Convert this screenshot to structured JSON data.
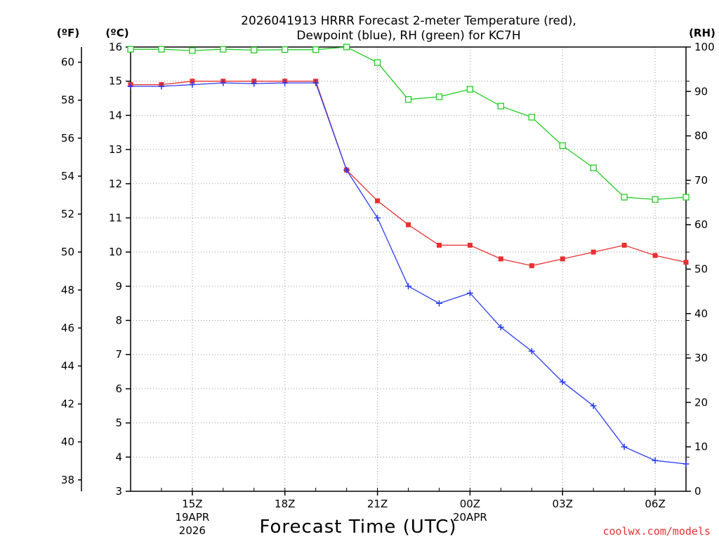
{
  "chart_data": {
    "type": "line",
    "title_line1": "2026041913 HRRR Forecast 2-meter Temperature (red),",
    "title_line2": "Dewpoint (blue), RH (green) for KC7H",
    "left_unit": "(ºF)",
    "middle_unit": "(ºC)",
    "right_unit": "(RH)",
    "xlabel": "Forecast Time (UTC)",
    "credit": "coolwx.com/models",
    "colors": {
      "temperature": "#e83030",
      "dewpoint": "#2a3cf0",
      "rh": "#22cc22",
      "credit": "#e83030",
      "grid": "#999999"
    },
    "x_ticks": [
      {
        "hour": 15,
        "label": "15Z",
        "date": "19APR",
        "year": "2026"
      },
      {
        "hour": 18,
        "label": "18Z"
      },
      {
        "hour": 21,
        "label": "21Z"
      },
      {
        "hour": 24,
        "label": "00Z",
        "date": "20APR"
      },
      {
        "hour": 27,
        "label": "03Z"
      },
      {
        "hour": 30,
        "label": "06Z"
      }
    ],
    "xlim": [
      13,
      31
    ],
    "celsius_axis": {
      "range": [
        3,
        16
      ],
      "ticks": [
        3,
        4,
        5,
        6,
        7,
        8,
        9,
        10,
        11,
        12,
        13,
        14,
        15,
        16
      ]
    },
    "fahrenheit_axis": {
      "ticks": [
        38,
        40,
        42,
        44,
        46,
        48,
        50,
        52,
        54,
        56,
        58,
        60
      ]
    },
    "rh_axis": {
      "range": [
        0,
        100
      ],
      "ticks": [
        0,
        10,
        20,
        30,
        40,
        50,
        60,
        70,
        80,
        90,
        100
      ]
    },
    "series": [
      {
        "name": "Temperature",
        "unit": "C",
        "marker": "filled-square",
        "x": [
          13,
          14,
          15,
          16,
          17,
          18,
          19,
          20,
          21,
          22,
          23,
          24,
          25,
          26,
          27,
          28,
          29,
          30,
          31
        ],
        "values": [
          14.9,
          14.9,
          15.0,
          15.0,
          15.0,
          15.0,
          15.0,
          12.4,
          11.5,
          10.8,
          10.2,
          10.2,
          9.8,
          9.6,
          9.8,
          10.0,
          10.2,
          9.9,
          9.7
        ]
      },
      {
        "name": "Dewpoint",
        "unit": "C",
        "marker": "plus",
        "x": [
          13,
          14,
          15,
          16,
          17,
          18,
          19,
          20,
          21,
          22,
          23,
          24,
          25,
          26,
          27,
          28,
          29,
          30,
          31
        ],
        "values": [
          14.85,
          14.85,
          14.9,
          14.95,
          14.93,
          14.95,
          14.95,
          12.4,
          11.0,
          9.0,
          8.5,
          8.8,
          7.8,
          7.1,
          6.2,
          5.5,
          4.3,
          3.9,
          3.8
        ]
      },
      {
        "name": "RH",
        "unit": "%",
        "marker": "open-square",
        "x": [
          13,
          14,
          15,
          16,
          17,
          18,
          19,
          20,
          21,
          22,
          23,
          24,
          25,
          26,
          27,
          28,
          29,
          30,
          31
        ],
        "values": [
          99.5,
          99.5,
          99.2,
          99.5,
          99.3,
          99.4,
          99.4,
          100,
          96.5,
          88.2,
          88.8,
          90.5,
          86.7,
          84.2,
          77.8,
          72.8,
          66.2,
          65.7,
          66.2
        ]
      }
    ]
  }
}
